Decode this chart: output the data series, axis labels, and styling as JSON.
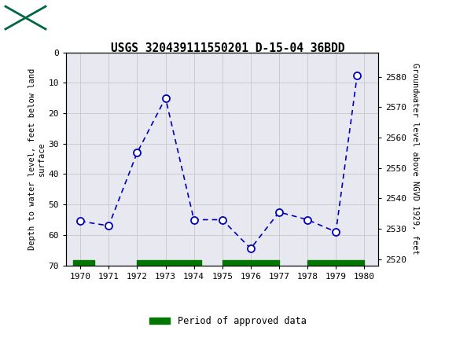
{
  "title": "USGS 320439111550201 D-15-04 36BDD",
  "years": [
    1970,
    1971,
    1972,
    1973,
    1974,
    1975,
    1976,
    1977,
    1978,
    1979,
    1979.75
  ],
  "depth": [
    55.5,
    57.0,
    33.0,
    15.0,
    55.0,
    55.0,
    64.5,
    52.5,
    55.0,
    59.0,
    7.5
  ],
  "ylim_depth": [
    70,
    0
  ],
  "ylim_elev": [
    2518,
    2588
  ],
  "xlim": [
    1969.5,
    1980.5
  ],
  "xticks": [
    1970,
    1971,
    1972,
    1973,
    1974,
    1975,
    1976,
    1977,
    1978,
    1979,
    1980
  ],
  "yticks_depth": [
    0,
    10,
    20,
    30,
    40,
    50,
    60,
    70
  ],
  "yticks_elev": [
    2520,
    2530,
    2540,
    2550,
    2560,
    2570,
    2580
  ],
  "ylabel_left": "Depth to water level, feet below land\nsurface",
  "ylabel_right": "Groundwater level above NGVD 1929, feet",
  "line_color": "#0000bb",
  "marker_edge": "#0000bb",
  "marker_face": "#ffffff",
  "green_color": "#007700",
  "header_bg": "#006644",
  "legend_label": "Period of approved data",
  "green_bars": [
    [
      1969.75,
      1970.5
    ],
    [
      1972.0,
      1974.25
    ],
    [
      1975.0,
      1977.0
    ],
    [
      1978.0,
      1980.0
    ]
  ],
  "plot_bg": "#e8e8f0",
  "fig_bg": "#ffffff"
}
